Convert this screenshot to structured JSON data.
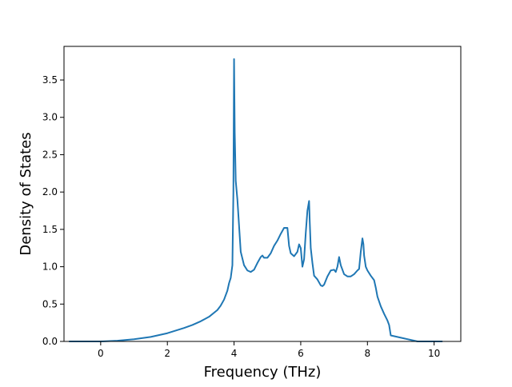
{
  "chart_data": {
    "type": "line",
    "title": "",
    "xlabel": "Frequency (THz)",
    "ylabel": "Density of States",
    "xlim": [
      -1.1,
      10.8
    ],
    "ylim": [
      0.0,
      3.95
    ],
    "x_ticks": [
      0,
      2,
      4,
      6,
      8,
      10
    ],
    "x_tick_labels": [
      "0",
      "2",
      "4",
      "6",
      "8",
      "10"
    ],
    "y_ticks": [
      0.0,
      0.5,
      1.0,
      1.5,
      2.0,
      2.5,
      3.0,
      3.5
    ],
    "y_tick_labels": [
      "0.0",
      "0.5",
      "1.0",
      "1.5",
      "2.0",
      "2.5",
      "3.0",
      "3.5"
    ],
    "grid": false,
    "legend": "none",
    "series": [
      {
        "color": "#1f77b4",
        "x": [
          -0.95,
          0.0,
          0.5,
          1.0,
          1.5,
          2.0,
          2.5,
          2.75,
          3.0,
          3.25,
          3.5,
          3.6,
          3.7,
          3.8,
          3.85,
          3.9,
          3.95,
          3.98,
          4.0,
          4.02,
          4.05,
          4.1,
          4.15,
          4.2,
          4.3,
          4.4,
          4.5,
          4.6,
          4.7,
          4.8,
          4.85,
          4.9,
          5.0,
          5.1,
          5.2,
          5.3,
          5.4,
          5.5,
          5.6,
          5.65,
          5.7,
          5.8,
          5.9,
          5.95,
          6.0,
          6.05,
          6.1,
          6.15,
          6.2,
          6.25,
          6.27,
          6.3,
          6.35,
          6.4,
          6.5,
          6.6,
          6.65,
          6.7,
          6.8,
          6.9,
          7.0,
          7.05,
          7.1,
          7.15,
          7.2,
          7.3,
          7.4,
          7.5,
          7.6,
          7.7,
          7.75,
          7.8,
          7.85,
          7.88,
          7.9,
          7.95,
          8.0,
          8.1,
          8.2,
          8.25,
          8.3,
          8.4,
          8.5,
          8.6,
          8.65,
          8.7,
          8.9,
          9.1,
          9.3,
          9.5,
          9.8,
          10.0,
          10.25
        ],
        "y": [
          0.0,
          0.0,
          0.01,
          0.03,
          0.06,
          0.11,
          0.18,
          0.22,
          0.27,
          0.33,
          0.42,
          0.48,
          0.56,
          0.68,
          0.78,
          0.85,
          1.02,
          2.0,
          3.78,
          2.8,
          2.15,
          1.9,
          1.55,
          1.2,
          1.02,
          0.95,
          0.93,
          0.96,
          1.05,
          1.13,
          1.15,
          1.12,
          1.12,
          1.18,
          1.28,
          1.35,
          1.44,
          1.52,
          1.52,
          1.28,
          1.18,
          1.14,
          1.2,
          1.3,
          1.25,
          1.0,
          1.1,
          1.45,
          1.75,
          1.88,
          1.6,
          1.25,
          1.05,
          0.88,
          0.83,
          0.75,
          0.74,
          0.76,
          0.87,
          0.95,
          0.96,
          0.93,
          1.0,
          1.13,
          1.02,
          0.9,
          0.87,
          0.87,
          0.9,
          0.95,
          0.97,
          1.2,
          1.38,
          1.3,
          1.15,
          1.0,
          0.95,
          0.88,
          0.82,
          0.72,
          0.6,
          0.47,
          0.37,
          0.28,
          0.22,
          0.08,
          0.06,
          0.04,
          0.02,
          0.0,
          0.0,
          0.0,
          0.0
        ]
      }
    ]
  }
}
